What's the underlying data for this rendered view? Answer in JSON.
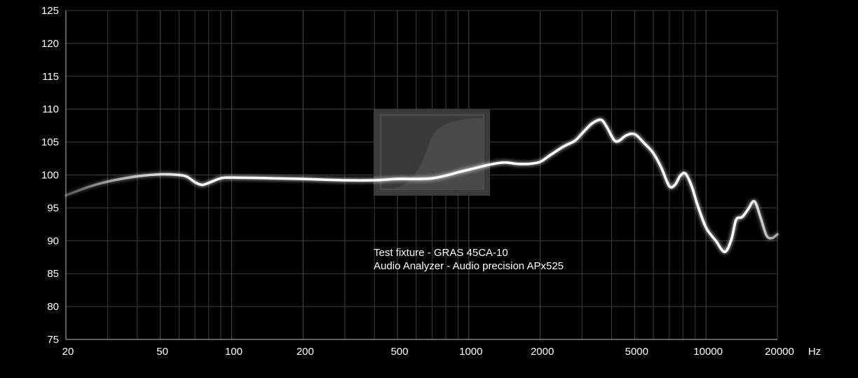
{
  "chart_data": {
    "type": "line",
    "title": "",
    "xlabel": "",
    "ylabel": "",
    "x_scale": "log",
    "xlim": [
      20,
      20000
    ],
    "ylim": [
      75,
      125
    ],
    "grid": true,
    "x_tick_labels": [
      {
        "value": 20,
        "label": "20"
      },
      {
        "value": 50,
        "label": "50"
      },
      {
        "value": 100,
        "label": "100"
      },
      {
        "value": 200,
        "label": "200"
      },
      {
        "value": 500,
        "label": "500"
      },
      {
        "value": 1000,
        "label": "1000"
      },
      {
        "value": 2000,
        "label": "2000"
      },
      {
        "value": 5000,
        "label": "5000"
      },
      {
        "value": 10000,
        "label": "10000"
      },
      {
        "value": 20000,
        "label": "20000"
      }
    ],
    "x_unit_label": "Hz",
    "y_ticks": [
      75,
      80,
      85,
      90,
      95,
      100,
      105,
      110,
      115,
      120,
      125
    ],
    "x_minor_grid": [
      30,
      40,
      60,
      70,
      80,
      90,
      300,
      400,
      600,
      700,
      800,
      900,
      3000,
      4000,
      6000,
      7000,
      8000,
      9000
    ],
    "series": [
      {
        "color": "#ffffff",
        "points": [
          [
            20,
            96.9
          ],
          [
            25,
            98.2
          ],
          [
            30,
            99.0
          ],
          [
            40,
            99.8
          ],
          [
            50,
            100.1
          ],
          [
            60,
            100.0
          ],
          [
            65,
            99.7
          ],
          [
            70,
            98.9
          ],
          [
            75,
            98.5
          ],
          [
            80,
            98.8
          ],
          [
            90,
            99.5
          ],
          [
            100,
            99.6
          ],
          [
            150,
            99.5
          ],
          [
            200,
            99.4
          ],
          [
            300,
            99.2
          ],
          [
            400,
            99.2
          ],
          [
            500,
            99.4
          ],
          [
            600,
            99.4
          ],
          [
            700,
            99.5
          ],
          [
            800,
            99.9
          ],
          [
            900,
            100.4
          ],
          [
            1000,
            100.8
          ],
          [
            1200,
            101.5
          ],
          [
            1400,
            101.9
          ],
          [
            1600,
            101.7
          ],
          [
            1800,
            101.7
          ],
          [
            2000,
            102.0
          ],
          [
            2200,
            103.0
          ],
          [
            2500,
            104.3
          ],
          [
            2800,
            105.2
          ],
          [
            3000,
            106.3
          ],
          [
            3300,
            107.8
          ],
          [
            3600,
            108.4
          ],
          [
            3800,
            107.4
          ],
          [
            4100,
            105.3
          ],
          [
            4300,
            105.2
          ],
          [
            4600,
            106.0
          ],
          [
            5000,
            106.2
          ],
          [
            5500,
            104.8
          ],
          [
            6000,
            103.3
          ],
          [
            6500,
            101.0
          ],
          [
            7000,
            98.3
          ],
          [
            7400,
            98.5
          ],
          [
            7800,
            99.9
          ],
          [
            8200,
            100.2
          ],
          [
            8700,
            98.3
          ],
          [
            9200,
            95.5
          ],
          [
            10000,
            92.0
          ],
          [
            11000,
            90.0
          ],
          [
            12000,
            88.3
          ],
          [
            12800,
            90.2
          ],
          [
            13400,
            93.2
          ],
          [
            14200,
            93.6
          ],
          [
            15000,
            94.7
          ],
          [
            16000,
            96.0
          ],
          [
            17000,
            93.5
          ],
          [
            18000,
            90.8
          ],
          [
            19000,
            90.4
          ],
          [
            20000,
            91.0
          ]
        ]
      }
    ],
    "annotations": [
      "Test fixture -  GRAS 45CA-10",
      "Audio Analyzer - Audio precision APx525"
    ]
  }
}
